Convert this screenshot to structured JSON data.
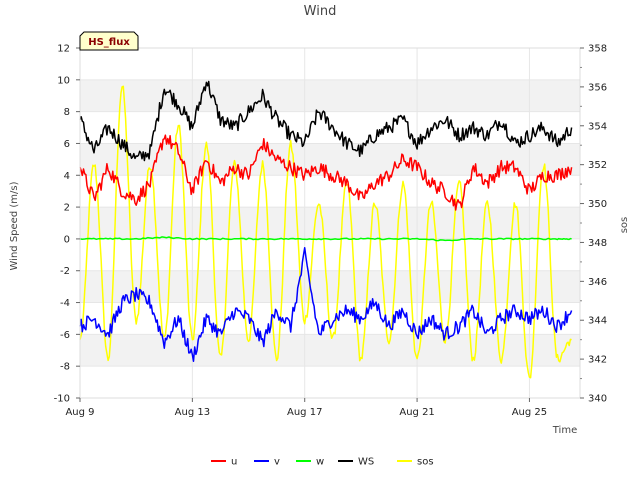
{
  "chart_data": {
    "type": "line",
    "title": "Wind",
    "xlabel": "Time",
    "ylabel": "Wind Speed (m/s)",
    "ylabel_right": "sos",
    "badge": "HS_flux",
    "x_unit": "day of August",
    "xlim": [
      9,
      26.8
    ],
    "ylim": [
      -10,
      12
    ],
    "ylim_right": [
      340,
      358
    ],
    "x_ticks": [
      9,
      13,
      17,
      21,
      25
    ],
    "x_tick_labels": [
      "Aug 9",
      "Aug 13",
      "Aug 17",
      "Aug 21",
      "Aug 25"
    ],
    "y_ticks": [
      -10,
      -8,
      -6,
      -4,
      -2,
      0,
      2,
      4,
      6,
      8,
      10,
      12
    ],
    "y_tick_labels": [
      "-10",
      "-8",
      "-6",
      "-4",
      "-2",
      "0",
      "2",
      "4",
      "6",
      "8",
      "10",
      "12"
    ],
    "y_right_ticks": [
      340,
      342,
      344,
      346,
      348,
      350,
      352,
      354,
      356,
      358
    ],
    "y_right_tick_labels": [
      "340",
      "342",
      "344",
      "346",
      "348",
      "350",
      "352",
      "354",
      "356",
      "358"
    ],
    "bands": [
      [
        -8,
        -6
      ],
      [
        -4,
        -2
      ],
      [
        0,
        2
      ],
      [
        4,
        6
      ],
      [
        8,
        10
      ]
    ],
    "legend_position": "bottom-center",
    "series": [
      {
        "name": "u",
        "color": "#ff0000",
        "axis": "left",
        "x": [
          9.0,
          9.5,
          10.0,
          10.5,
          11.0,
          11.5,
          12.0,
          12.5,
          13.0,
          13.5,
          14.0,
          14.5,
          15.0,
          15.5,
          16.0,
          16.5,
          17.0,
          17.5,
          18.0,
          18.5,
          19.0,
          19.5,
          20.0,
          20.5,
          21.0,
          21.5,
          22.0,
          22.5,
          23.0,
          23.5,
          24.0,
          24.5,
          25.0,
          25.5,
          26.0,
          26.5
        ],
        "values": [
          4.5,
          2.5,
          4.5,
          3.0,
          2.5,
          3.5,
          6.5,
          5.5,
          3.0,
          5.0,
          3.5,
          4.5,
          4.0,
          6.0,
          5.0,
          4.5,
          4.0,
          4.5,
          4.0,
          3.5,
          2.5,
          3.5,
          4.0,
          5.0,
          4.5,
          3.5,
          3.0,
          2.0,
          4.5,
          3.5,
          4.5,
          4.5,
          3.0,
          4.0,
          4.0,
          4.5
        ]
      },
      {
        "name": "v",
        "color": "#0000ff",
        "axis": "left",
        "x": [
          9.0,
          9.5,
          10.0,
          10.5,
          11.0,
          11.5,
          12.0,
          12.5,
          13.0,
          13.5,
          14.0,
          14.5,
          15.0,
          15.5,
          16.0,
          16.5,
          17.0,
          17.5,
          18.0,
          18.5,
          19.0,
          19.5,
          20.0,
          20.5,
          21.0,
          21.5,
          22.0,
          22.5,
          23.0,
          23.5,
          24.0,
          24.5,
          25.0,
          25.5,
          26.0,
          26.5
        ],
        "values": [
          -5.5,
          -5.0,
          -6.0,
          -4.0,
          -3.5,
          -4.0,
          -6.5,
          -5.0,
          -7.5,
          -5.0,
          -6.0,
          -4.5,
          -5.0,
          -6.5,
          -4.5,
          -5.5,
          -1.0,
          -6.0,
          -5.0,
          -4.5,
          -5.0,
          -4.0,
          -5.5,
          -4.5,
          -6.0,
          -5.0,
          -6.0,
          -5.5,
          -4.5,
          -6.0,
          -5.0,
          -4.5,
          -5.0,
          -4.5,
          -5.5,
          -4.5
        ]
      },
      {
        "name": "w",
        "color": "#00ff00",
        "axis": "left",
        "x": [
          9.0,
          10.0,
          11.0,
          12.0,
          13.0,
          14.0,
          15.0,
          16.0,
          17.0,
          18.0,
          19.0,
          20.0,
          21.0,
          22.0,
          23.0,
          24.0,
          25.0,
          26.0,
          26.5
        ],
        "values": [
          0.0,
          0.0,
          0.0,
          0.1,
          0.0,
          0.0,
          0.0,
          0.0,
          0.0,
          0.0,
          0.0,
          0.0,
          0.0,
          -0.1,
          0.0,
          0.0,
          0.0,
          0.0,
          0.0
        ]
      },
      {
        "name": "WS",
        "color": "#000000",
        "axis": "left",
        "x": [
          9.0,
          9.5,
          10.0,
          10.5,
          11.0,
          11.5,
          12.0,
          12.5,
          13.0,
          13.5,
          14.0,
          14.5,
          15.0,
          15.5,
          16.0,
          16.5,
          17.0,
          17.5,
          18.0,
          18.5,
          19.0,
          19.5,
          20.0,
          20.5,
          21.0,
          21.5,
          22.0,
          22.5,
          23.0,
          23.5,
          24.0,
          24.5,
          25.0,
          25.5,
          26.0,
          26.5
        ],
        "values": [
          7.5,
          5.5,
          7.0,
          6.0,
          5.0,
          5.5,
          9.5,
          8.5,
          7.0,
          10.0,
          7.5,
          7.0,
          8.0,
          9.0,
          7.5,
          6.5,
          6.0,
          8.0,
          7.0,
          6.0,
          5.5,
          6.5,
          7.0,
          7.5,
          6.0,
          7.0,
          7.5,
          6.5,
          7.0,
          6.5,
          7.5,
          6.0,
          6.5,
          7.0,
          6.0,
          7.0
        ]
      },
      {
        "name": "sos",
        "color": "#ffff00",
        "axis": "right",
        "x": [
          9.0,
          9.5,
          10.0,
          10.5,
          11.0,
          11.5,
          12.0,
          12.5,
          13.0,
          13.5,
          14.0,
          14.5,
          15.0,
          15.5,
          16.0,
          16.5,
          17.0,
          17.5,
          18.0,
          18.5,
          19.0,
          19.5,
          20.0,
          20.5,
          21.0,
          21.5,
          22.0,
          22.5,
          23.0,
          23.5,
          24.0,
          24.5,
          25.0,
          25.5,
          26.0,
          26.5
        ],
        "values": [
          343,
          352,
          342,
          356,
          344,
          352,
          343,
          354,
          343,
          353,
          342,
          352,
          343,
          352,
          342,
          353,
          344,
          350,
          343,
          351,
          342,
          350,
          343,
          351,
          342,
          350,
          343,
          351,
          342,
          350,
          342,
          350,
          341,
          352,
          342,
          343
        ]
      }
    ]
  }
}
